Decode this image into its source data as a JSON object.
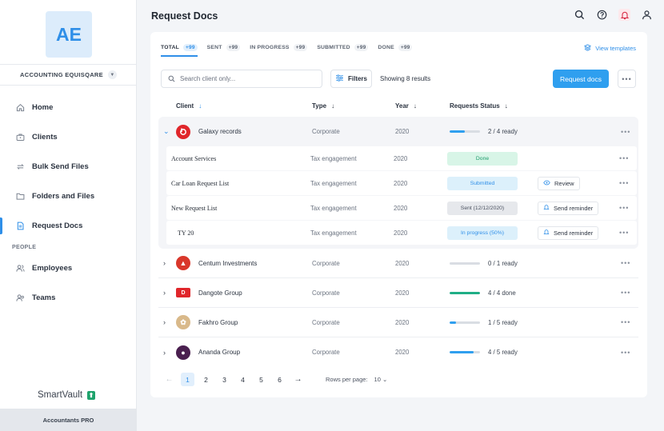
{
  "sidebar": {
    "org_initials": "AE",
    "org_name": "ACCOUNTING EQUISQARE",
    "nav": [
      {
        "label": "Home",
        "icon": "home-icon"
      },
      {
        "label": "Clients",
        "icon": "briefcase-icon"
      },
      {
        "label": "Bulk Send Files",
        "icon": "sync-icon"
      },
      {
        "label": "Folders and Files",
        "icon": "folder-icon"
      },
      {
        "label": "Request Docs",
        "icon": "document-icon",
        "active": true
      }
    ],
    "section_people": "PEOPLE",
    "people_nav": [
      {
        "label": "Employees",
        "icon": "users-icon"
      },
      {
        "label": "Teams",
        "icon": "team-icon"
      }
    ],
    "brand": "SmartVault",
    "plan": "Accountants PRO"
  },
  "header": {
    "title": "Request Docs"
  },
  "tabs": [
    {
      "label": "TOTAL",
      "count": "+99",
      "active": true
    },
    {
      "label": "SENT",
      "count": "+99"
    },
    {
      "label": "IN PROGRESS",
      "count": "+99"
    },
    {
      "label": "SUBMITTED",
      "count": "+99"
    },
    {
      "label": "DONE",
      "count": "+99"
    }
  ],
  "view_templates": "View templates",
  "search": {
    "placeholder": "Search client only..."
  },
  "filters_label": "Filters",
  "showing_text": "Showing 8 results",
  "request_docs_button": "Request docs",
  "columns": {
    "client": "Client",
    "type": "Type",
    "year": "Year",
    "status": "Requests Status"
  },
  "expanded_client": {
    "name": "Galaxy records",
    "type": "Corporate",
    "year": "2020",
    "progress_text": "2 / 4 ready",
    "progress": 0.5,
    "logo_color": "#e0262b",
    "requests": [
      {
        "name": "Account Services",
        "type": "Tax engagement",
        "year": "2020",
        "status": "Done",
        "status_bg": "#d8f5e7",
        "status_color": "#1f9c6c",
        "action": ""
      },
      {
        "name": "Car Loan Request List",
        "type": "Tax engagement",
        "year": "2020",
        "status": "Submitted",
        "status_bg": "#dcf0fb",
        "status_color": "#2f8fe8",
        "action": "Review",
        "action_icon": "eye-icon"
      },
      {
        "name": "New Request List",
        "type": "Tax engagement",
        "year": "2020",
        "status": "Sent (12/12/2020)",
        "status_bg": "#e6e8ec",
        "status_color": "#4b5260",
        "action": "Send reminder",
        "action_icon": "bell-icon"
      },
      {
        "name": "TY 20",
        "type": "Tax engagement",
        "year": "2020",
        "status": "In progress (50%)",
        "status_bg": "#dcf0fb",
        "status_color": "#2f8fe8",
        "action": "Send reminder",
        "action_icon": "bell-icon"
      }
    ]
  },
  "clients": [
    {
      "name": "Centum Investments",
      "type": "Corporate",
      "year": "2020",
      "progress_text": "0 / 1 ready",
      "progress": 0,
      "bar_color": "#2f9fef",
      "logo_color": "#d9372b"
    },
    {
      "name": "Dangote Group",
      "type": "Corporate",
      "year": "2020",
      "progress_text": "4 / 4 done",
      "progress": 1,
      "bar_color": "#1fae86",
      "logo_color": "#e0262b"
    },
    {
      "name": "Fakhro Group",
      "type": "Corporate",
      "year": "2020",
      "progress_text": "1 / 5 ready",
      "progress": 0.2,
      "bar_color": "#2f9fef",
      "logo_color": "#d9b98a"
    },
    {
      "name": "Ananda Group",
      "type": "Corporate",
      "year": "2020",
      "progress_text": "4 / 5 ready",
      "progress": 0.8,
      "bar_color": "#2f9fef",
      "logo_color": "#4a1f4f"
    }
  ],
  "pagination": {
    "pages": [
      "1",
      "2",
      "3",
      "4",
      "5",
      "6"
    ],
    "current": "1",
    "rows_label": "Rows per page:",
    "rows_value": "10"
  },
  "colors": {
    "accent": "#2f9fef",
    "sidebar_bg": "#ffffff",
    "page_bg": "#f3f5f8"
  }
}
